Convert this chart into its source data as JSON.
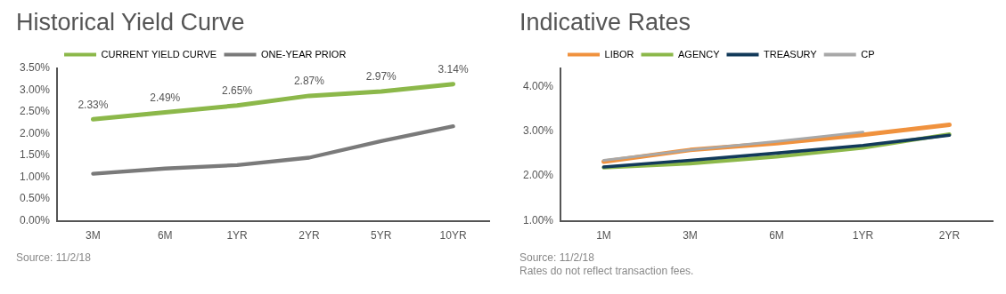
{
  "chart_data": [
    {
      "type": "line",
      "title": "Historical Yield Curve",
      "categories": [
        "3M",
        "6M",
        "1YR",
        "2YR",
        "5YR",
        "10YR"
      ],
      "series": [
        {
          "name": "CURRENT YIELD CURVE",
          "color": "#8cb84a",
          "values": [
            2.33,
            2.49,
            2.65,
            2.87,
            2.97,
            3.14
          ],
          "value_labels": [
            "2.33%",
            "2.49%",
            "2.65%",
            "2.87%",
            "2.97%",
            "3.14%"
          ]
        },
        {
          "name": "ONE-YEAR PRIOR",
          "color": "#7a7a7a",
          "values": [
            1.08,
            1.2,
            1.28,
            1.45,
            1.83,
            2.17
          ]
        }
      ],
      "ylim": [
        0,
        3.5
      ],
      "yticks": [
        {
          "value": 0,
          "label": "0.00%"
        },
        {
          "value": 0.5,
          "label": "0.50%"
        },
        {
          "value": 1,
          "label": "1.00%"
        },
        {
          "value": 1.5,
          "label": "1.50%"
        },
        {
          "value": 2,
          "label": "2.00%"
        },
        {
          "value": 2.5,
          "label": "2.50%"
        },
        {
          "value": 3,
          "label": "3.00%"
        },
        {
          "value": 3.5,
          "label": "3.50%"
        }
      ],
      "grid": false,
      "legend": "top left",
      "marker": "none",
      "annotations": [
        "Source: 11/2/18"
      ]
    },
    {
      "type": "line",
      "title": "Indicative Rates",
      "categories": [
        "1M",
        "3M",
        "6M",
        "1YR",
        "2YR"
      ],
      "series": [
        {
          "name": "LIBOR",
          "color": "#f0923e",
          "values": [
            2.32,
            2.58,
            2.73,
            2.92,
            3.14
          ]
        },
        {
          "name": "AGENCY",
          "color": "#8cb84a",
          "values": [
            2.19,
            2.28,
            2.43,
            2.63,
            2.93
          ]
        },
        {
          "name": "TREASURY",
          "color": "#123a5a",
          "values": [
            2.2,
            2.35,
            2.51,
            2.68,
            2.91
          ]
        },
        {
          "name": "CP",
          "color": "#a8a8a8",
          "values": [
            2.35,
            2.58,
            2.77,
            2.98,
            null
          ]
        }
      ],
      "ylim": [
        1,
        4.4
      ],
      "yticks": [
        {
          "value": 1,
          "label": "1.00%"
        },
        {
          "value": 2,
          "label": "2.00%"
        },
        {
          "value": 3,
          "label": "3.00%"
        },
        {
          "value": 4,
          "label": "4.00%"
        }
      ],
      "grid": false,
      "legend": "top left",
      "marker": "none",
      "annotations": [
        "Source: 11/2/18",
        "Rates do not reflect transaction fees."
      ]
    }
  ]
}
